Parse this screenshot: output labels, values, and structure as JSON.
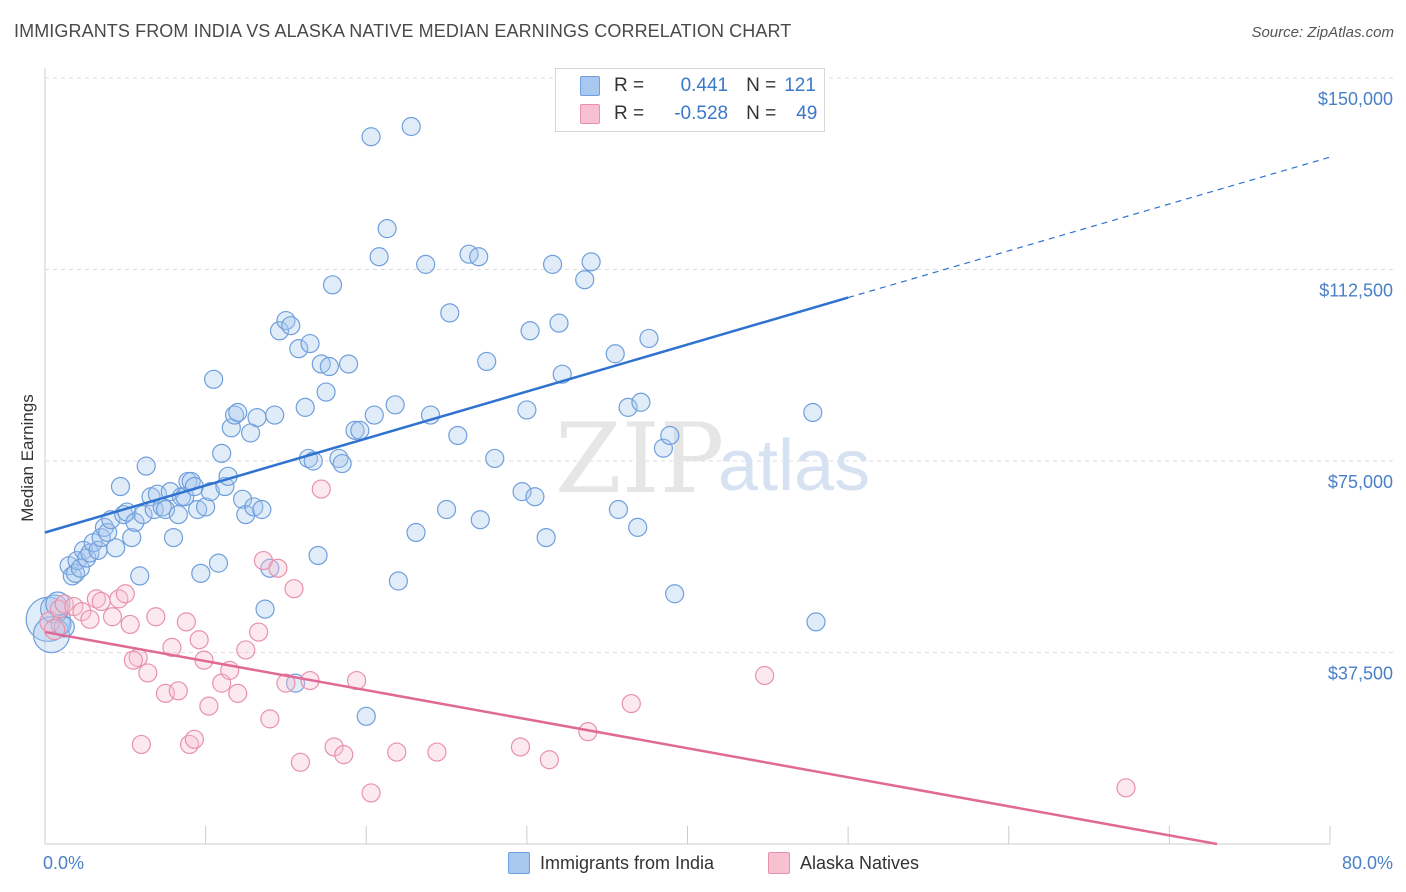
{
  "title": "IMMIGRANTS FROM INDIA VS ALASKA NATIVE MEDIAN EARNINGS CORRELATION CHART",
  "source": "Source: ZipAtlas.com",
  "watermark": {
    "zip": "ZIP",
    "atlas": "atlas"
  },
  "legend_top": {
    "rows": [
      {
        "r_label": "R =",
        "r_value": "0.441",
        "n_label": "N =",
        "n_value": "121",
        "color": "#a9c8ef",
        "border": "#6f9fdc"
      },
      {
        "r_label": "R =",
        "r_value": "-0.528",
        "n_label": "N =",
        "n_value": "49",
        "color": "#f7c1d2",
        "border": "#e891ad"
      }
    ]
  },
  "legend_bottom": [
    {
      "label": "Immigrants from India",
      "color": "#a9c8ef",
      "border": "#6f9fdc"
    },
    {
      "label": "Alaska Natives",
      "color": "#f7c1d2",
      "border": "#e891ad"
    }
  ],
  "chart_data": {
    "type": "scatter",
    "ylabel": "Median Earnings",
    "xlim": [
      0,
      80
    ],
    "ylim": [
      0,
      152000
    ],
    "x_tick_labels": {
      "left": "0.0%",
      "right": "80.0%"
    },
    "y_ticks": [
      {
        "value": 37500,
        "label": "$37,500"
      },
      {
        "value": 75000,
        "label": "$75,000"
      },
      {
        "value": 112500,
        "label": "$112,500"
      },
      {
        "value": 150000,
        "label": "$150,000"
      }
    ],
    "grid": true,
    "series": [
      {
        "name": "Immigrants from India",
        "color": "#6f9fdc",
        "fill": "#a9c8ef",
        "line_color": "#2f72cf",
        "trend": {
          "x0": 0,
          "y0": 61000,
          "x1": 50,
          "y1": 107000,
          "x_dash_end": 80,
          "y_dash_end": 134500
        },
        "points": [
          [
            0.2,
            44000,
            22
          ],
          [
            0.4,
            41000,
            18
          ],
          [
            0.6,
            46000,
            14
          ],
          [
            0.8,
            47000,
            12
          ],
          [
            1.0,
            43000,
            10
          ],
          [
            1.2,
            42500,
            10
          ],
          [
            1.5,
            54500,
            9
          ],
          [
            1.7,
            52500,
            9
          ],
          [
            1.9,
            53000,
            9
          ],
          [
            2.0,
            55500,
            9
          ],
          [
            2.2,
            54000,
            9
          ],
          [
            2.4,
            57500,
            9
          ],
          [
            2.6,
            56000,
            9
          ],
          [
            2.8,
            57000,
            9
          ],
          [
            3.0,
            59000,
            9
          ],
          [
            3.3,
            57500,
            9
          ],
          [
            3.5,
            60000,
            9
          ],
          [
            3.7,
            62000,
            9
          ],
          [
            3.9,
            61000,
            9
          ],
          [
            4.1,
            63500,
            9
          ],
          [
            4.4,
            58000,
            9
          ],
          [
            4.7,
            70000,
            9
          ],
          [
            4.9,
            64500,
            9
          ],
          [
            5.1,
            65000,
            9
          ],
          [
            5.4,
            60000,
            9
          ],
          [
            5.6,
            63000,
            9
          ],
          [
            5.9,
            52500,
            9
          ],
          [
            6.1,
            64500,
            9
          ],
          [
            6.3,
            74000,
            9
          ],
          [
            6.6,
            68000,
            9
          ],
          [
            6.8,
            65500,
            9
          ],
          [
            7.0,
            68500,
            9
          ],
          [
            7.3,
            66000,
            9
          ],
          [
            7.5,
            65500,
            9
          ],
          [
            7.8,
            69000,
            9
          ],
          [
            8.0,
            60000,
            9
          ],
          [
            8.3,
            64500,
            9
          ],
          [
            8.5,
            68000,
            9
          ],
          [
            8.7,
            68000,
            9
          ],
          [
            8.9,
            71000,
            9
          ],
          [
            9.1,
            71000,
            9
          ],
          [
            9.3,
            70000,
            9
          ],
          [
            9.5,
            65500,
            9
          ],
          [
            9.7,
            53000,
            9
          ],
          [
            10.0,
            66000,
            9
          ],
          [
            10.3,
            69000,
            9
          ],
          [
            10.5,
            91000,
            9
          ],
          [
            10.8,
            55000,
            9
          ],
          [
            11.0,
            76500,
            9
          ],
          [
            11.2,
            70000,
            9
          ],
          [
            11.4,
            72000,
            9
          ],
          [
            11.6,
            81500,
            9
          ],
          [
            11.8,
            84000,
            9
          ],
          [
            12.0,
            84500,
            9
          ],
          [
            12.3,
            67500,
            9
          ],
          [
            12.5,
            64500,
            9
          ],
          [
            12.8,
            80500,
            9
          ],
          [
            13.0,
            66000,
            9
          ],
          [
            13.2,
            83500,
            9
          ],
          [
            13.5,
            65500,
            9
          ],
          [
            13.7,
            46000,
            9
          ],
          [
            14.0,
            54000,
            9
          ],
          [
            14.3,
            84000,
            9
          ],
          [
            14.6,
            100500,
            9
          ],
          [
            15.0,
            102500,
            9
          ],
          [
            15.3,
            101500,
            9
          ],
          [
            15.6,
            31500,
            9
          ],
          [
            15.8,
            97000,
            9
          ],
          [
            16.2,
            85500,
            9
          ],
          [
            16.4,
            75500,
            9
          ],
          [
            16.7,
            75000,
            9
          ],
          [
            17.0,
            56500,
            9
          ],
          [
            17.2,
            94000,
            9
          ],
          [
            17.5,
            88500,
            9
          ],
          [
            17.7,
            93500,
            9
          ],
          [
            17.9,
            109500,
            9
          ],
          [
            18.3,
            75500,
            9
          ],
          [
            18.5,
            74500,
            9
          ],
          [
            18.9,
            94000,
            9
          ],
          [
            19.3,
            81000,
            9
          ],
          [
            19.6,
            81000,
            9
          ],
          [
            20.0,
            25000,
            9
          ],
          [
            20.3,
            138500,
            9
          ],
          [
            20.5,
            84000,
            9
          ],
          [
            20.8,
            115000,
            9
          ],
          [
            21.3,
            120500,
            9
          ],
          [
            21.8,
            86000,
            9
          ],
          [
            22.0,
            51500,
            9
          ],
          [
            22.8,
            140500,
            9
          ],
          [
            23.1,
            61000,
            9
          ],
          [
            23.7,
            113500,
            9
          ],
          [
            24.0,
            84000,
            9
          ],
          [
            25.0,
            65500,
            9
          ],
          [
            25.2,
            104000,
            9
          ],
          [
            25.7,
            80000,
            9
          ],
          [
            26.4,
            115500,
            9
          ],
          [
            27.0,
            115000,
            9
          ],
          [
            27.1,
            63500,
            9
          ],
          [
            27.5,
            94500,
            9
          ],
          [
            28.0,
            75500,
            9
          ],
          [
            29.7,
            69000,
            9
          ],
          [
            30.0,
            85000,
            9
          ],
          [
            30.2,
            100500,
            9
          ],
          [
            30.5,
            68000,
            9
          ],
          [
            31.2,
            60000,
            9
          ],
          [
            31.6,
            113500,
            9
          ],
          [
            32.0,
            102000,
            9
          ],
          [
            32.2,
            92000,
            9
          ],
          [
            33.6,
            110500,
            9
          ],
          [
            34.0,
            114000,
            9
          ],
          [
            35.5,
            96000,
            9
          ],
          [
            35.7,
            65500,
            9
          ],
          [
            36.3,
            85500,
            9
          ],
          [
            36.9,
            62000,
            9
          ],
          [
            37.1,
            86500,
            9
          ],
          [
            37.6,
            99000,
            9
          ],
          [
            38.5,
            77500,
            9
          ],
          [
            38.9,
            80000,
            9
          ],
          [
            39.2,
            49000,
            9
          ],
          [
            47.8,
            84500,
            9
          ],
          [
            48.0,
            43500,
            9
          ],
          [
            16.5,
            98000,
            9
          ]
        ]
      },
      {
        "name": "Alaska Natives",
        "color": "#e891ad",
        "fill": "#f7c1d2",
        "line_color": "#e06a95",
        "trend": {
          "x0": 0,
          "y0": 41500,
          "x1": 80,
          "y1": -4000
        },
        "points": [
          [
            0.3,
            43500,
            10
          ],
          [
            0.6,
            42000,
            10
          ],
          [
            0.9,
            46000,
            9
          ],
          [
            1.2,
            47000,
            9
          ],
          [
            1.8,
            46500,
            9
          ],
          [
            2.3,
            45500,
            9
          ],
          [
            2.8,
            44000,
            9
          ],
          [
            3.2,
            48000,
            9
          ],
          [
            3.5,
            47500,
            9
          ],
          [
            4.2,
            44500,
            9
          ],
          [
            4.6,
            48000,
            9
          ],
          [
            5.0,
            49000,
            9
          ],
          [
            5.3,
            43000,
            9
          ],
          [
            5.8,
            36500,
            9
          ],
          [
            6.0,
            19500,
            9
          ],
          [
            6.4,
            33500,
            9
          ],
          [
            6.9,
            44500,
            9
          ],
          [
            7.5,
            29500,
            9
          ],
          [
            7.9,
            38500,
            9
          ],
          [
            8.3,
            30000,
            9
          ],
          [
            8.8,
            43500,
            9
          ],
          [
            9.0,
            19500,
            9
          ],
          [
            9.3,
            20500,
            9
          ],
          [
            9.6,
            40000,
            9
          ],
          [
            9.9,
            36000,
            9
          ],
          [
            10.2,
            27000,
            9
          ],
          [
            11.0,
            31500,
            9
          ],
          [
            11.5,
            34000,
            9
          ],
          [
            12.0,
            29500,
            9
          ],
          [
            12.5,
            38000,
            9
          ],
          [
            13.3,
            41500,
            9
          ],
          [
            13.6,
            55500,
            9
          ],
          [
            14.0,
            24500,
            9
          ],
          [
            14.5,
            54000,
            9
          ],
          [
            15.0,
            31500,
            9
          ],
          [
            15.5,
            50000,
            9
          ],
          [
            15.9,
            16000,
            9
          ],
          [
            16.5,
            32000,
            9
          ],
          [
            17.2,
            69500,
            9
          ],
          [
            18.0,
            19000,
            9
          ],
          [
            18.6,
            17500,
            9
          ],
          [
            19.4,
            32000,
            9
          ],
          [
            20.3,
            10000,
            9
          ],
          [
            21.9,
            18000,
            9
          ],
          [
            24.4,
            18000,
            9
          ],
          [
            29.6,
            19000,
            9
          ],
          [
            31.4,
            16500,
            9
          ],
          [
            33.8,
            22000,
            9
          ],
          [
            36.5,
            27500,
            9
          ],
          [
            44.8,
            33000,
            9
          ],
          [
            67.3,
            11000,
            9
          ],
          [
            5.5,
            36000,
            9
          ]
        ]
      }
    ]
  }
}
